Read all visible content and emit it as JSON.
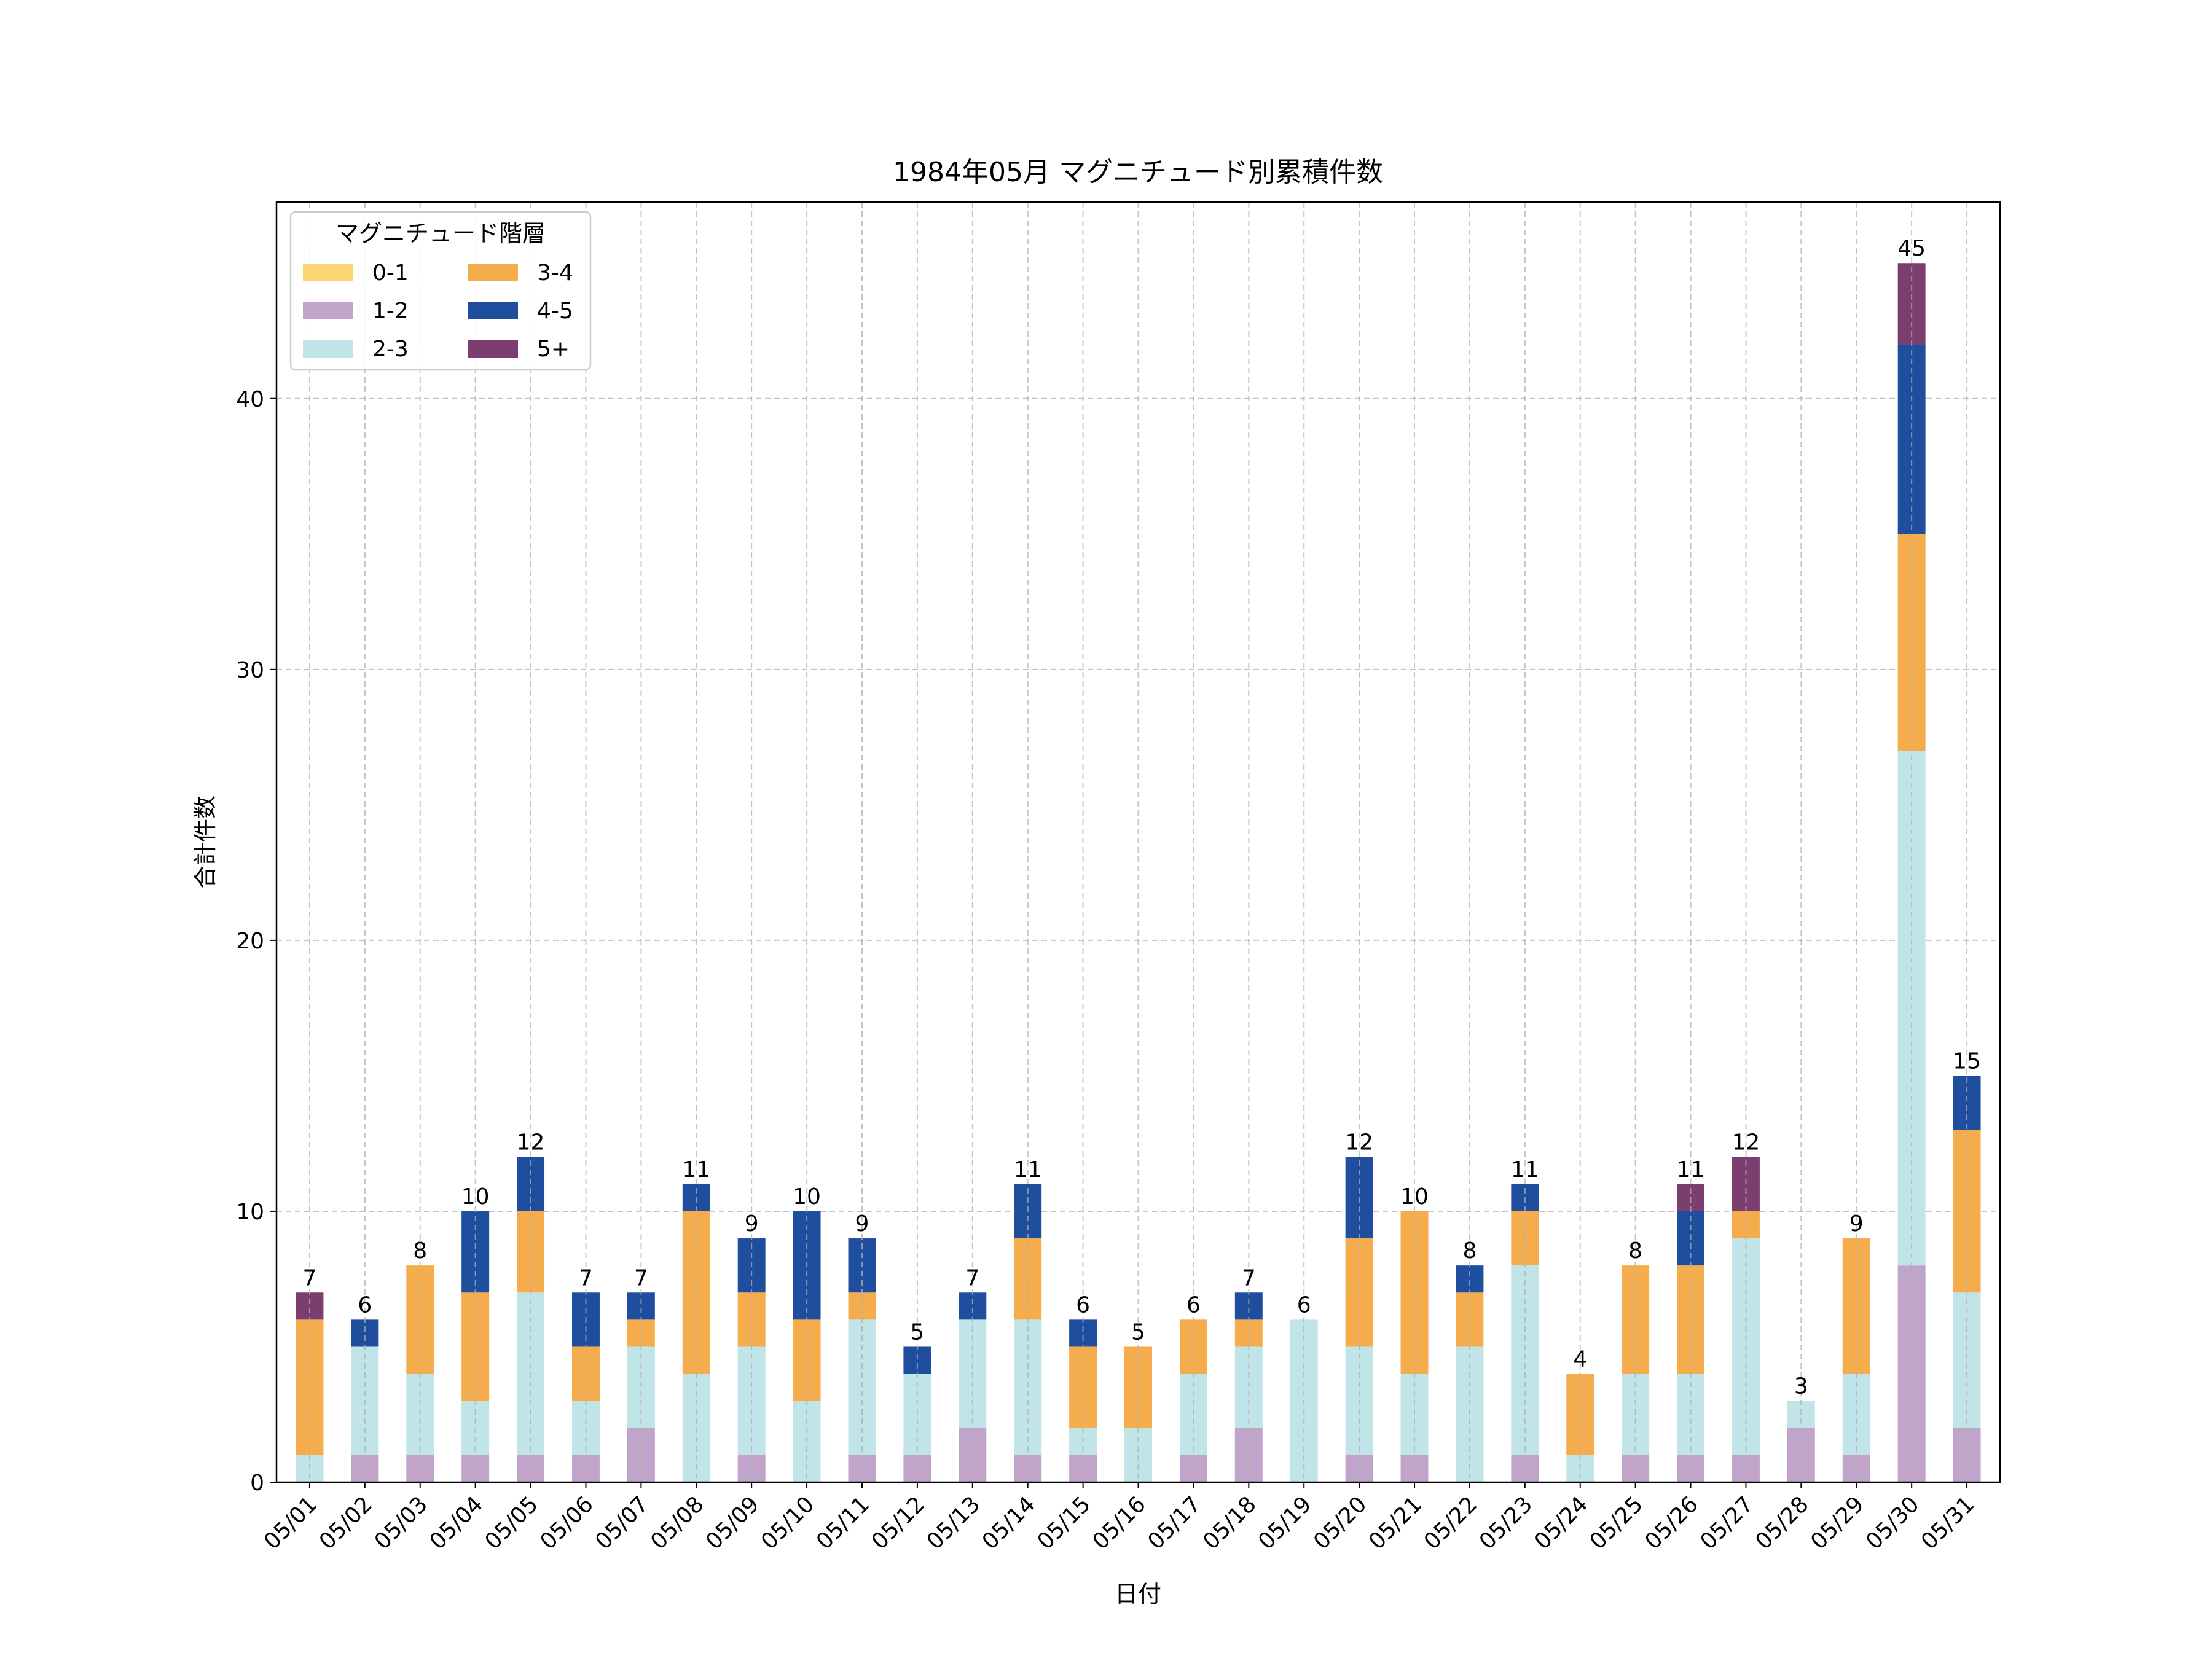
{
  "chart_data": {
    "type": "bar",
    "stacked": true,
    "title": "1984年05月 マグニチュード別累積件数",
    "xlabel": "日付",
    "ylabel": "合計件数",
    "ylim": [
      0,
      47.25
    ],
    "yticks": [
      0,
      10,
      20,
      30,
      40
    ],
    "grid": true,
    "legend": {
      "title": "マグニチュード階層",
      "placement": "top-left",
      "columns": 2
    },
    "categories": [
      "05/01",
      "05/02",
      "05/03",
      "05/04",
      "05/05",
      "05/06",
      "05/07",
      "05/08",
      "05/09",
      "05/10",
      "05/11",
      "05/12",
      "05/13",
      "05/14",
      "05/15",
      "05/16",
      "05/17",
      "05/18",
      "05/19",
      "05/20",
      "05/21",
      "05/22",
      "05/23",
      "05/24",
      "05/25",
      "05/26",
      "05/27",
      "05/28",
      "05/29",
      "05/30",
      "05/31"
    ],
    "series": [
      {
        "name": "0-1",
        "color": "#fcd474",
        "values": [
          0,
          0,
          0,
          0,
          0,
          0,
          0,
          0,
          0,
          0,
          0,
          0,
          0,
          0,
          0,
          0,
          0,
          0,
          0,
          0,
          0,
          0,
          0,
          0,
          0,
          0,
          0,
          0,
          0,
          0,
          0
        ]
      },
      {
        "name": "1-2",
        "color": "#c1a4ca",
        "values": [
          0,
          1,
          1,
          1,
          1,
          1,
          2,
          0,
          1,
          0,
          1,
          1,
          2,
          1,
          1,
          0,
          1,
          2,
          0,
          1,
          1,
          0,
          1,
          0,
          1,
          1,
          1,
          2,
          1,
          8,
          2
        ]
      },
      {
        "name": "2-3",
        "color": "#c0e4e7",
        "values": [
          1,
          4,
          3,
          2,
          6,
          2,
          3,
          4,
          4,
          3,
          5,
          3,
          4,
          5,
          1,
          2,
          3,
          3,
          6,
          4,
          3,
          5,
          7,
          1,
          3,
          3,
          8,
          1,
          3,
          19,
          5
        ]
      },
      {
        "name": "3-4",
        "color": "#f4ac4c",
        "values": [
          5,
          0,
          4,
          4,
          3,
          2,
          1,
          6,
          2,
          3,
          1,
          0,
          0,
          3,
          3,
          3,
          2,
          1,
          0,
          4,
          6,
          2,
          2,
          3,
          4,
          4,
          1,
          0,
          5,
          8,
          6
        ]
      },
      {
        "name": "4-5",
        "color": "#1f4e9f",
        "values": [
          0,
          1,
          0,
          3,
          2,
          2,
          1,
          1,
          2,
          4,
          2,
          1,
          1,
          2,
          1,
          0,
          0,
          1,
          0,
          3,
          0,
          1,
          1,
          0,
          0,
          2,
          0,
          0,
          0,
          7,
          2
        ]
      },
      {
        "name": "5+",
        "color": "#7b3e6e",
        "values": [
          1,
          0,
          0,
          0,
          0,
          0,
          0,
          0,
          0,
          0,
          0,
          0,
          0,
          0,
          0,
          0,
          0,
          0,
          0,
          0,
          0,
          0,
          0,
          0,
          0,
          1,
          2,
          0,
          0,
          3,
          0
        ]
      }
    ],
    "totals": [
      7,
      6,
      8,
      10,
      12,
      7,
      7,
      11,
      9,
      10,
      9,
      5,
      7,
      11,
      6,
      5,
      6,
      7,
      6,
      12,
      10,
      8,
      11,
      4,
      8,
      11,
      12,
      3,
      9,
      45,
      15
    ]
  }
}
